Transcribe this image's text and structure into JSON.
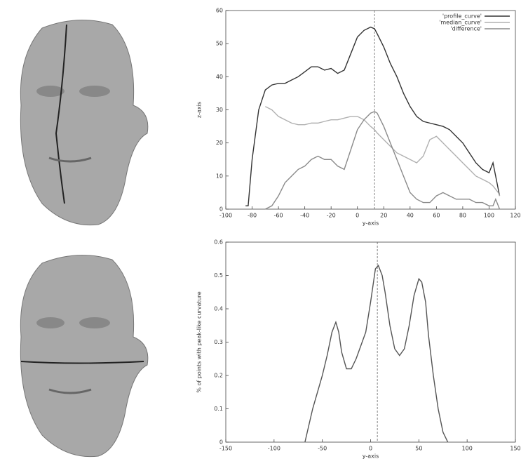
{
  "chart_data": [
    {
      "type": "line",
      "xlabel": "y-axis",
      "ylabel": "z-axis",
      "xlim": [
        -100,
        120
      ],
      "xticks": [
        -100,
        -80,
        -60,
        -40,
        -20,
        0,
        20,
        40,
        60,
        80,
        100,
        120
      ],
      "ylim": [
        0,
        60
      ],
      "yticks": [
        0,
        10,
        20,
        30,
        40,
        50,
        60
      ],
      "vline": 13,
      "legend": "top-right",
      "x": [
        -85,
        -83,
        -80,
        -75,
        -70,
        -65,
        -60,
        -55,
        -50,
        -45,
        -40,
        -35,
        -30,
        -25,
        -20,
        -15,
        -10,
        -5,
        0,
        5,
        10,
        13,
        15,
        20,
        25,
        30,
        35,
        40,
        45,
        50,
        55,
        60,
        65,
        70,
        75,
        80,
        85,
        90,
        95,
        100,
        103,
        105,
        107,
        108
      ],
      "series": [
        {
          "name": "'profile_curve'",
          "color": "#333333",
          "values": [
            1,
            1,
            15,
            30,
            36,
            37.5,
            38,
            38,
            39,
            40,
            41.5,
            43,
            43,
            42,
            42.5,
            41,
            42,
            47,
            52,
            54,
            55,
            54.5,
            53,
            49,
            44,
            40,
            35,
            31,
            28,
            26.5,
            26,
            25.5,
            25,
            24,
            22,
            20,
            17,
            14,
            12,
            11,
            14,
            10,
            6,
            4
          ]
        },
        {
          "name": "'median_curve'",
          "color": "#b0b0b0",
          "values": [
            null,
            null,
            null,
            null,
            31,
            30,
            28,
            27,
            26,
            25.5,
            25.5,
            26,
            26,
            26.5,
            27,
            27,
            27.5,
            28,
            28,
            27,
            25,
            24,
            23,
            21,
            19,
            17,
            16,
            15,
            14,
            16,
            21,
            22,
            20,
            18,
            16,
            14,
            12,
            10,
            9,
            8,
            7,
            6,
            5,
            4
          ]
        },
        {
          "name": "'difference'",
          "color": "#8a8a8a",
          "values": [
            null,
            null,
            null,
            null,
            0,
            1,
            4,
            8,
            10,
            12,
            13,
            15,
            16,
            15,
            15,
            13,
            12,
            18,
            24,
            27,
            29,
            29.5,
            29,
            25,
            20,
            15,
            10,
            5,
            3,
            2,
            2,
            4,
            5,
            4,
            3,
            3,
            3,
            2,
            2,
            1,
            1,
            3,
            1,
            0
          ]
        }
      ]
    },
    {
      "type": "line",
      "xlabel": "y-axis",
      "ylabel": "% of points with peak-like curvature",
      "xlim": [
        -150,
        150
      ],
      "xticks": [
        -150,
        -100,
        -50,
        0,
        50,
        100,
        150
      ],
      "ylim": [
        0,
        0.6
      ],
      "yticks": [
        0,
        0.1,
        0.2,
        0.3,
        0.4,
        0.5,
        0.6
      ],
      "vline": 7,
      "x": [
        -68,
        -60,
        -50,
        -45,
        -40,
        -36,
        -33,
        -30,
        -25,
        -20,
        -15,
        -10,
        -5,
        0,
        5,
        8,
        12,
        15,
        20,
        25,
        30,
        35,
        40,
        45,
        50,
        53,
        57,
        60,
        65,
        70,
        75,
        80
      ],
      "series": [
        {
          "color": "#555555",
          "values": [
            0,
            0.1,
            0.2,
            0.26,
            0.33,
            0.36,
            0.33,
            0.27,
            0.22,
            0.22,
            0.25,
            0.29,
            0.33,
            0.42,
            0.52,
            0.53,
            0.5,
            0.45,
            0.35,
            0.28,
            0.26,
            0.28,
            0.35,
            0.44,
            0.49,
            0.48,
            0.42,
            0.32,
            0.2,
            0.1,
            0.03,
            0
          ]
        }
      ]
    }
  ]
}
